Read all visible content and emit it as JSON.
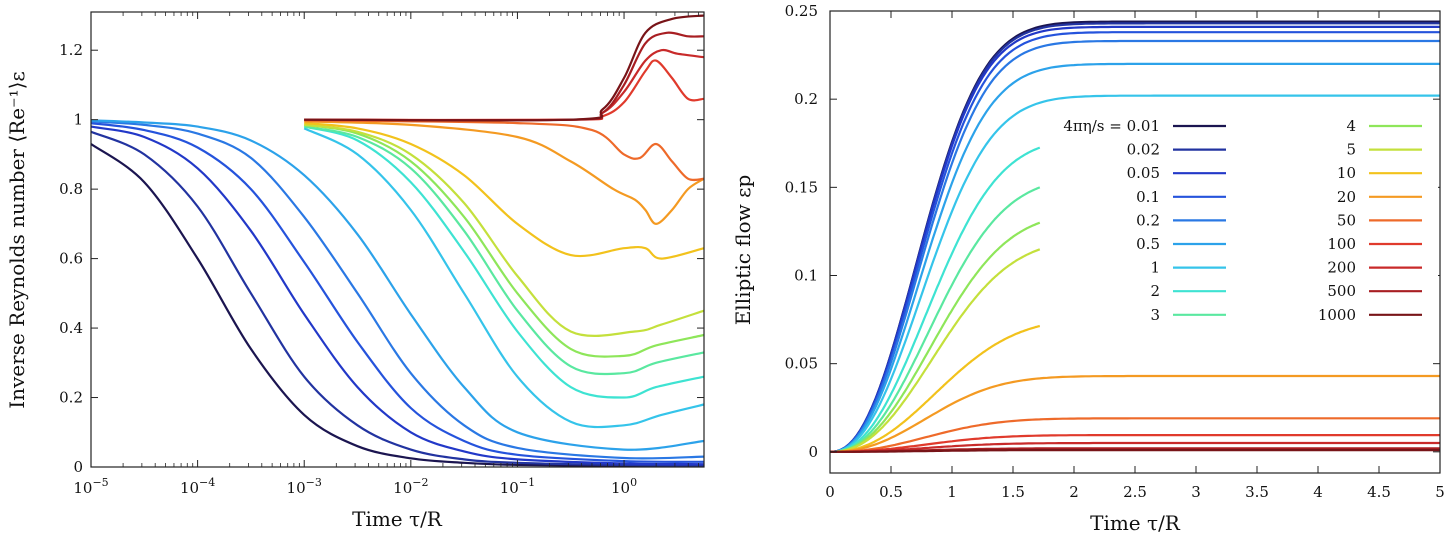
{
  "chart_data": [
    {
      "type": "line",
      "id": "left",
      "xscale": "log",
      "xlabel": "Time τ/R",
      "ylabel": "Inverse Reynolds number ⟨Re⁻¹⟩ε",
      "xlim_exp": [
        -5,
        0.75
      ],
      "ylim": [
        0,
        1.31
      ],
      "xtick_labels": [
        "10−5",
        "10−4",
        "10−3",
        "10−2",
        "10−1",
        "100"
      ],
      "ytick_labels": [
        "0",
        "0.2",
        "0.4",
        "0.6",
        "0.8",
        "1",
        "1.2"
      ],
      "series": [
        {
          "eta_s": "0.01",
          "color": "#1b1550",
          "points": [
            [
              -5,
              0.93
            ],
            [
              -4.5,
              0.82
            ],
            [
              -4,
              0.6
            ],
            [
              -3.5,
              0.34
            ],
            [
              -3,
              0.15
            ],
            [
              -2.5,
              0.06
            ],
            [
              -2,
              0.025
            ],
            [
              -1.5,
              0.012
            ],
            [
              -1,
              0.006
            ],
            [
              0,
              0.003
            ],
            [
              0.75,
              0.002
            ]
          ]
        },
        {
          "eta_s": "0.02",
          "color": "#2233a0",
          "points": [
            [
              -5,
              0.965
            ],
            [
              -4.5,
              0.9
            ],
            [
              -4,
              0.75
            ],
            [
              -3.5,
              0.5
            ],
            [
              -3,
              0.26
            ],
            [
              -2.5,
              0.12
            ],
            [
              -2,
              0.05
            ],
            [
              -1.5,
              0.022
            ],
            [
              -1,
              0.012
            ],
            [
              0,
              0.006
            ],
            [
              0.75,
              0.004
            ]
          ]
        },
        {
          "eta_s": "0.05",
          "color": "#2238c8",
          "points": [
            [
              -5,
              0.98
            ],
            [
              -4.5,
              0.95
            ],
            [
              -4,
              0.86
            ],
            [
              -3.5,
              0.68
            ],
            [
              -3,
              0.44
            ],
            [
              -2.5,
              0.23
            ],
            [
              -2,
              0.1
            ],
            [
              -1.5,
              0.045
            ],
            [
              -1,
              0.022
            ],
            [
              0,
              0.01
            ],
            [
              0.75,
              0.008
            ]
          ]
        },
        {
          "eta_s": "0.1",
          "color": "#2553dc",
          "points": [
            [
              -5,
              0.99
            ],
            [
              -4.5,
              0.97
            ],
            [
              -4,
              0.92
            ],
            [
              -3.5,
              0.8
            ],
            [
              -3,
              0.59
            ],
            [
              -2.5,
              0.36
            ],
            [
              -2,
              0.17
            ],
            [
              -1.5,
              0.075
            ],
            [
              -1,
              0.035
            ],
            [
              0,
              0.017
            ],
            [
              0.75,
              0.015
            ]
          ]
        },
        {
          "eta_s": "0.2",
          "color": "#2a78e4",
          "points": [
            [
              -5,
              0.995
            ],
            [
              -4.5,
              0.985
            ],
            [
              -4,
              0.96
            ],
            [
              -3.5,
              0.89
            ],
            [
              -3,
              0.72
            ],
            [
              -2.5,
              0.5
            ],
            [
              -2,
              0.27
            ],
            [
              -1.5,
              0.12
            ],
            [
              -1,
              0.055
            ],
            [
              0,
              0.026
            ],
            [
              0.75,
              0.03
            ]
          ]
        },
        {
          "eta_s": "0.5",
          "color": "#2ca2ea",
          "points": [
            [
              -5,
              0.998
            ],
            [
              -4.5,
              0.992
            ],
            [
              -4,
              0.98
            ],
            [
              -3.5,
              0.94
            ],
            [
              -3,
              0.84
            ],
            [
              -2.5,
              0.67
            ],
            [
              -2,
              0.44
            ],
            [
              -1.5,
              0.23
            ],
            [
              -1,
              0.1
            ],
            [
              0,
              0.05
            ],
            [
              0.75,
              0.075
            ]
          ]
        },
        {
          "eta_s": "1",
          "color": "#35c4ea",
          "points": [
            [
              -3,
              0.975
            ],
            [
              -2.5,
              0.9
            ],
            [
              -2,
              0.74
            ],
            [
              -1.5,
              0.5
            ],
            [
              -1,
              0.26
            ],
            [
              -0.5,
              0.13
            ],
            [
              0,
              0.12
            ],
            [
              0.35,
              0.15
            ],
            [
              0.75,
              0.18
            ]
          ]
        },
        {
          "eta_s": "2",
          "color": "#3ee3d2",
          "points": [
            [
              -3,
              0.98
            ],
            [
              -2.5,
              0.94
            ],
            [
              -2,
              0.82
            ],
            [
              -1.5,
              0.62
            ],
            [
              -1,
              0.39
            ],
            [
              -0.5,
              0.23
            ],
            [
              0,
              0.2
            ],
            [
              0.3,
              0.23
            ],
            [
              0.75,
              0.26
            ]
          ]
        },
        {
          "eta_s": "3",
          "color": "#5ae8a0",
          "points": [
            [
              -3,
              0.98
            ],
            [
              -2.5,
              0.95
            ],
            [
              -2,
              0.86
            ],
            [
              -1.5,
              0.68
            ],
            [
              -1,
              0.45
            ],
            [
              -0.5,
              0.29
            ],
            [
              0,
              0.27
            ],
            [
              0.3,
              0.3
            ],
            [
              0.75,
              0.33
            ]
          ]
        },
        {
          "eta_s": "4",
          "color": "#8ee65a",
          "points": [
            [
              -3,
              0.985
            ],
            [
              -2.5,
              0.96
            ],
            [
              -2,
              0.88
            ],
            [
              -1.5,
              0.72
            ],
            [
              -1,
              0.5
            ],
            [
              -0.5,
              0.34
            ],
            [
              0,
              0.32
            ],
            [
              0.3,
              0.35
            ],
            [
              0.75,
              0.38
            ]
          ]
        },
        {
          "eta_s": "5",
          "color": "#c4e03c",
          "points": [
            [
              -3,
              0.985
            ],
            [
              -2.5,
              0.965
            ],
            [
              -2,
              0.9
            ],
            [
              -1.5,
              0.76
            ],
            [
              -1,
              0.55
            ],
            [
              -0.5,
              0.39
            ],
            [
              0.1,
              0.39
            ],
            [
              0.35,
              0.41
            ],
            [
              0.75,
              0.45
            ]
          ]
        },
        {
          "eta_s": "10",
          "color": "#f2c21c",
          "points": [
            [
              -3,
              0.99
            ],
            [
              -2.5,
              0.975
            ],
            [
              -2,
              0.93
            ],
            [
              -1.5,
              0.84
            ],
            [
              -1,
              0.7
            ],
            [
              -0.5,
              0.61
            ],
            [
              0,
              0.63
            ],
            [
              0.2,
              0.63
            ],
            [
              0.35,
              0.6
            ],
            [
              0.75,
              0.63
            ]
          ]
        },
        {
          "eta_s": "20",
          "color": "#f49a22",
          "points": [
            [
              -3,
              0.995
            ],
            [
              -2,
              0.985
            ],
            [
              -1,
              0.95
            ],
            [
              -0.5,
              0.88
            ],
            [
              -0.1,
              0.8
            ],
            [
              0.1,
              0.77
            ],
            [
              0.2,
              0.74
            ],
            [
              0.3,
              0.7
            ],
            [
              0.45,
              0.74
            ],
            [
              0.6,
              0.8
            ],
            [
              0.75,
              0.83
            ]
          ]
        },
        {
          "eta_s": "50",
          "color": "#ee6a2a",
          "points": [
            [
              -3,
              0.998
            ],
            [
              -1,
              0.99
            ],
            [
              -0.3,
              0.97
            ],
            [
              0,
              0.9
            ],
            [
              0.15,
              0.89
            ],
            [
              0.3,
              0.93
            ],
            [
              0.45,
              0.88
            ],
            [
              0.6,
              0.83
            ],
            [
              0.75,
              0.83
            ]
          ]
        },
        {
          "eta_s": "100",
          "color": "#e03a2c",
          "points": [
            [
              -3,
              1.0
            ],
            [
              -0.5,
              1.0
            ],
            [
              -0.2,
              1.01
            ],
            [
              0,
              1.05
            ],
            [
              0.2,
              1.14
            ],
            [
              0.3,
              1.17
            ],
            [
              0.45,
              1.12
            ],
            [
              0.6,
              1.06
            ],
            [
              0.75,
              1.06
            ]
          ]
        },
        {
          "eta_s": "200",
          "color": "#c82a2a",
          "points": [
            [
              -3,
              1.0
            ],
            [
              -0.5,
              1.0
            ],
            [
              -0.2,
              1.02
            ],
            [
              0,
              1.08
            ],
            [
              0.2,
              1.17
            ],
            [
              0.35,
              1.2
            ],
            [
              0.5,
              1.19
            ],
            [
              0.75,
              1.18
            ]
          ]
        },
        {
          "eta_s": "500",
          "color": "#a81e22",
          "points": [
            [
              -3,
              1.0
            ],
            [
              -0.5,
              1.0
            ],
            [
              -0.2,
              1.02
            ],
            [
              0,
              1.1
            ],
            [
              0.2,
              1.22
            ],
            [
              0.4,
              1.25
            ],
            [
              0.6,
              1.24
            ],
            [
              0.75,
              1.24
            ]
          ]
        },
        {
          "eta_s": "1000",
          "color": "#781418",
          "points": [
            [
              -3,
              1.0
            ],
            [
              -0.5,
              1.0
            ],
            [
              -0.2,
              1.03
            ],
            [
              0,
              1.12
            ],
            [
              0.2,
              1.25
            ],
            [
              0.45,
              1.29
            ],
            [
              0.75,
              1.3
            ]
          ]
        }
      ]
    },
    {
      "type": "line",
      "id": "right",
      "xlabel": "Time τ/R",
      "ylabel": "Elliptic flow εp",
      "xlim": [
        0,
        5
      ],
      "ylim": [
        -0.012,
        0.25
      ],
      "xtick_labels": [
        "0",
        "0.5",
        "1",
        "1.5",
        "2",
        "2.5",
        "3",
        "3.5",
        "4",
        "4.5",
        "5"
      ],
      "ytick_labels": [
        "0",
        "0.05",
        "0.1",
        "0.15",
        "0.2",
        "0.25"
      ],
      "legend_title": "4πη/s =",
      "series": [
        {
          "eta_s": "0.01",
          "color": "#1b1550",
          "plateau": 0.244,
          "t0": 0.9,
          "end": 5
        },
        {
          "eta_s": "0.02",
          "color": "#2233a0",
          "plateau": 0.243,
          "t0": 0.9,
          "end": 5
        },
        {
          "eta_s": "0.05",
          "color": "#2238c8",
          "plateau": 0.241,
          "t0": 0.9,
          "end": 5
        },
        {
          "eta_s": "0.1",
          "color": "#2553dc",
          "plateau": 0.238,
          "t0": 0.91,
          "end": 5
        },
        {
          "eta_s": "0.2",
          "color": "#2a78e4",
          "plateau": 0.233,
          "t0": 0.92,
          "end": 5
        },
        {
          "eta_s": "0.5",
          "color": "#2ca2ea",
          "plateau": 0.22,
          "t0": 0.93,
          "end": 5
        },
        {
          "eta_s": "1",
          "color": "#35c4ea",
          "plateau": 0.202,
          "t0": 0.95,
          "end": 5
        },
        {
          "eta_s": "2",
          "color": "#3ee3d2",
          "plateau": 0.178,
          "t0": 1.0,
          "end": 1.72
        },
        {
          "eta_s": "3",
          "color": "#5ae8a0",
          "plateau": 0.156,
          "t0": 1.03,
          "end": 1.72
        },
        {
          "eta_s": "4",
          "color": "#8ee65a",
          "plateau": 0.136,
          "t0": 1.05,
          "end": 1.72
        },
        {
          "eta_s": "5",
          "color": "#c4e03c",
          "plateau": 0.121,
          "t0": 1.07,
          "end": 1.72
        },
        {
          "eta_s": "10",
          "color": "#f2c21c",
          "plateau": 0.076,
          "t0": 1.1,
          "end": 1.72
        },
        {
          "eta_s": "20",
          "color": "#f49a22",
          "plateau": 0.043,
          "t0": 1.0,
          "end": 5
        },
        {
          "eta_s": "50",
          "color": "#ee6a2a",
          "plateau": 0.019,
          "t0": 1.0,
          "end": 5
        },
        {
          "eta_s": "100",
          "color": "#e03a2c",
          "plateau": 0.0095,
          "t0": 1.0,
          "end": 5
        },
        {
          "eta_s": "200",
          "color": "#c82a2a",
          "plateau": 0.005,
          "t0": 1.0,
          "end": 5
        },
        {
          "eta_s": "500",
          "color": "#a81e22",
          "plateau": 0.002,
          "t0": 1.0,
          "end": 5
        },
        {
          "eta_s": "1000",
          "color": "#781418",
          "plateau": 0.001,
          "t0": 1.0,
          "end": 5
        }
      ]
    }
  ]
}
